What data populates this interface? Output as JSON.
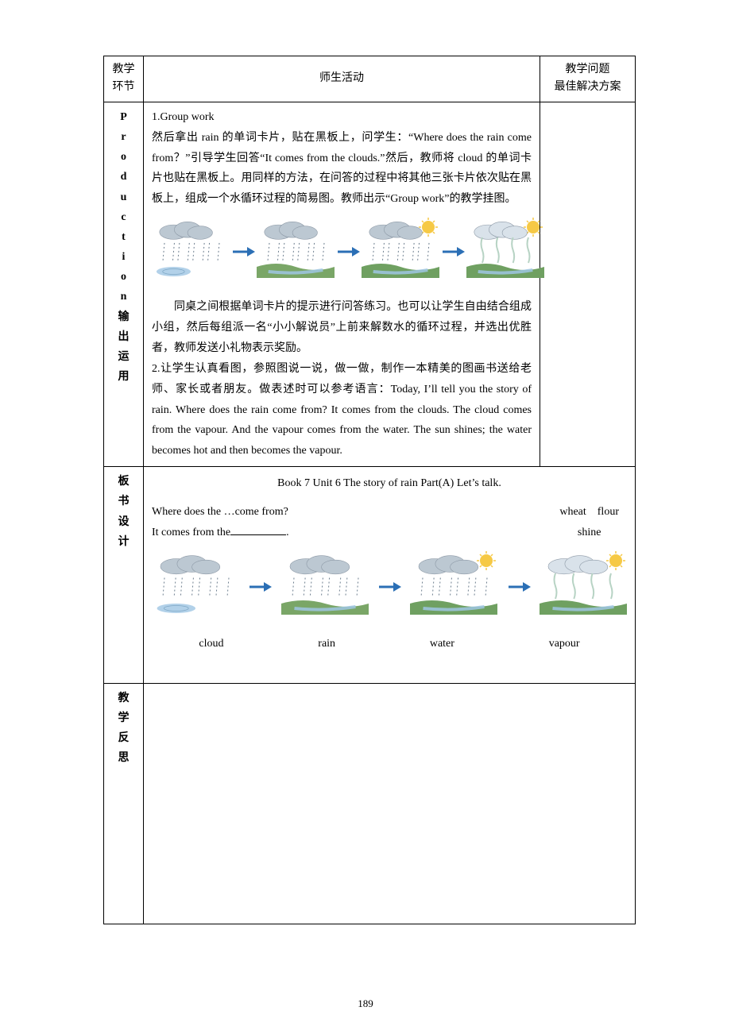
{
  "header": {
    "col1_line1": "教学",
    "col1_line2": "环节",
    "col2": "师生活动",
    "col3_line1": "教学问题",
    "col3_line2": "最佳解决方案"
  },
  "stage1": {
    "letters": [
      "P",
      "r",
      "o",
      "d",
      "u",
      "c",
      "t",
      "i",
      "o",
      "n"
    ],
    "cn": [
      "输",
      "出",
      "运",
      "用"
    ]
  },
  "activity1": {
    "p1_label": "1.Group work",
    "p2": "然后拿出 rain 的单词卡片，贴在黑板上，问学生：“Where does the rain come from？”引导学生回答“It comes from the clouds.”然后，教师将 cloud 的单词卡片也贴在黑板上。用同样的方法，在问答的过程中将其他三张卡片依次贴在黑板上，组成一个水循环过程的简易图。教师出示“Group work”的教学挂图。",
    "p3": "同桌之间根据单词卡片的提示进行问答练习。也可以让学生自由结合组成小组，然后每组派一名“小小解说员”上前来解数水的循环过程，并选出优胜者，教师发送小礼物表示奖励。",
    "p4": "2.让学生认真看图，参照图说一说，做一做，制作一本精美的图画书送给老师、家长或者朋友。做表述时可以参考语言：Today, I’ll tell you the story of rain. Where does the rain come from? It comes from the clouds. The cloud comes from the vapour. And the vapour comes from the water. The sun shines; the water becomes hot and then becomes the vapour."
  },
  "cycle": {
    "arrow_color": "#2b6fb5",
    "stages": [
      {
        "name": "cloud",
        "cloud": "#bcc8d2",
        "ground": "#7aa667",
        "sun": false,
        "rain": true,
        "puddle": true,
        "vapour": false
      },
      {
        "name": "rain",
        "cloud": "#bcc8d2",
        "ground": "#7aa667",
        "sun": false,
        "rain": true,
        "puddle": false,
        "vapour": false
      },
      {
        "name": "water",
        "cloud": "#bcc8d2",
        "ground": "#6fa061",
        "sun": true,
        "rain": true,
        "puddle": false,
        "vapour": false
      },
      {
        "name": "vapour",
        "cloud": "#d9e2ea",
        "ground": "#6fa061",
        "sun": true,
        "rain": false,
        "puddle": false,
        "vapour": true
      }
    ]
  },
  "board": {
    "stage_label_cn": [
      "板",
      "书",
      "设",
      "计"
    ],
    "title": "Book 7 Unit 6 The story of rain Part(A) Let’s talk.",
    "q_prefix": "Where does the …come from?",
    "a_prefix": "It comes from the",
    "a_suffix": ".",
    "right_line1": "wheat flour",
    "right_line2": "shine",
    "labels": [
      "cloud",
      "rain",
      "water",
      "vapour"
    ]
  },
  "reflect": {
    "stage_label_cn": [
      "教",
      "学",
      "反",
      "思"
    ]
  },
  "page_number": "189",
  "colors": {
    "sun": "#f6c945",
    "water": "#9fc6e3",
    "rain_dot": "#6e7f8f",
    "vapour": "#b7d3c4"
  }
}
